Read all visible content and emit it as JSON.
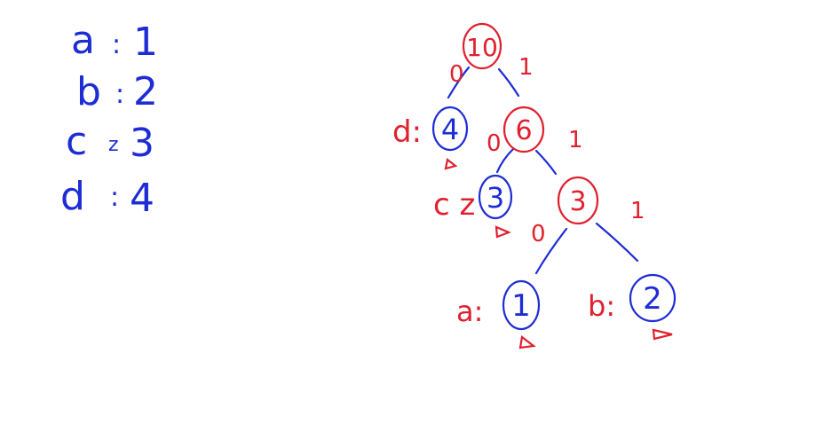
{
  "colors": {
    "leaf": "#1e2cd6",
    "internal": "#e0202e",
    "edge": "#1e2cd6"
  },
  "frequency_table": [
    {
      "symbol": "a",
      "sep": ":",
      "count": "1"
    },
    {
      "symbol": "b",
      "sep": ":",
      "count": "2"
    },
    {
      "symbol": "c",
      "sep": "z",
      "count": "3"
    },
    {
      "symbol": "d",
      "sep": ":",
      "count": "4"
    }
  ],
  "tree": {
    "nodes": {
      "root": {
        "value": "10"
      },
      "n6": {
        "value": "6"
      },
      "n3i": {
        "value": "3"
      },
      "d": {
        "value": "4",
        "label": "d:"
      },
      "c": {
        "value": "3",
        "label": "c z"
      },
      "a": {
        "value": "1",
        "label": "a:"
      },
      "b": {
        "value": "2",
        "label": "b:"
      }
    },
    "edge_labels": {
      "root_d": "0",
      "root_n6": "1",
      "n6_c": "0",
      "n6_n3i": "1",
      "n3i_a": "0",
      "n3i_b": "1"
    }
  }
}
